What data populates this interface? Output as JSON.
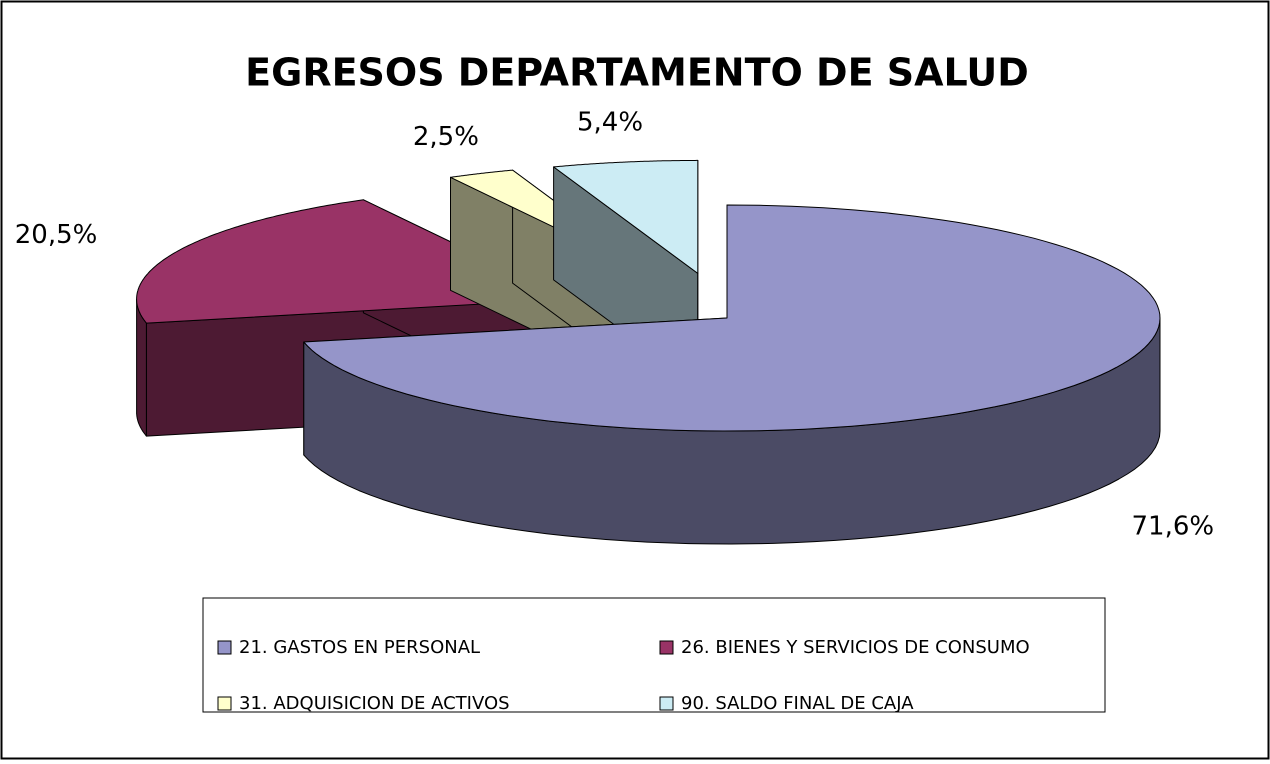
{
  "chart_data": {
    "type": "pie",
    "title": "EGRESOS DEPARTAMENTO DE SALUD",
    "categories": [
      "21. GASTOS EN PERSONAL",
      "26. BIENES Y SERVICIOS DE CONSUMO",
      "31. ADQUISICION DE ACTIVOS",
      "90. SALDO FINAL DE CAJA"
    ],
    "values": [
      71.6,
      20.5,
      2.5,
      5.4
    ],
    "value_labels": [
      "71,6%",
      "20,5%",
      "2,5%",
      "5,4%"
    ],
    "colors": [
      "#9595c9",
      "#993366",
      "#ffffcc",
      "#ccecf4"
    ],
    "legend": "bottom"
  }
}
